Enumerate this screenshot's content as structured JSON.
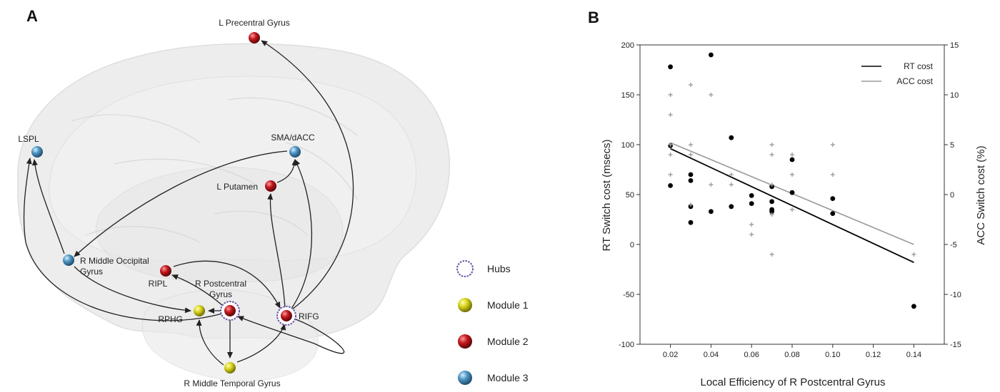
{
  "panel_a": {
    "letter": "A",
    "nodes": [
      {
        "id": "lprecentral",
        "label_lines": [
          "L Precentral Gyrus"
        ],
        "module": "module2",
        "hub": false
      },
      {
        "id": "lspl",
        "label_lines": [
          "LSPL"
        ],
        "module": "module3",
        "hub": false
      },
      {
        "id": "sma",
        "label_lines": [
          "SMA/dACC"
        ],
        "module": "module3",
        "hub": false
      },
      {
        "id": "lputamen",
        "label_lines": [
          "L Putamen"
        ],
        "module": "module2",
        "hub": false
      },
      {
        "id": "rmog",
        "label_lines": [
          "R Middle Occipital",
          "Gyrus"
        ],
        "module": "module3",
        "hub": false
      },
      {
        "id": "ripl",
        "label_lines": [
          "RIPL"
        ],
        "module": "module2",
        "hub": false
      },
      {
        "id": "rpostcentral",
        "label_lines": [
          "R Postcentral",
          "Gyrus"
        ],
        "module": "module2",
        "hub": true
      },
      {
        "id": "rifg",
        "label_lines": [
          "RIFG"
        ],
        "module": "module2",
        "hub": true
      },
      {
        "id": "rphg",
        "label_lines": [
          "RPHG"
        ],
        "module": "module1",
        "hub": false
      },
      {
        "id": "rmtg",
        "label_lines": [
          "R Middle Temporal Gyrus"
        ],
        "module": "module1",
        "hub": false
      }
    ],
    "edges": [
      {
        "from": "rifg",
        "to": "lprecentral"
      },
      {
        "from": "rifg",
        "to": "lputamen"
      },
      {
        "from": "rifg",
        "to": "sma"
      },
      {
        "from": "lputamen",
        "to": "sma"
      },
      {
        "from": "sma",
        "to": "rmog"
      },
      {
        "from": "rmog",
        "to": "lspl"
      },
      {
        "from": "rpostcentral",
        "to": "lspl"
      },
      {
        "from": "rmog",
        "to": "rphg"
      },
      {
        "from": "ripl",
        "to": "rifg"
      },
      {
        "from": "rpostcentral",
        "to": "ripl"
      },
      {
        "from": "rpostcentral",
        "to": "rmtg"
      },
      {
        "from": "rmtg",
        "to": "rphg"
      },
      {
        "from": "rmtg",
        "to": "rifg"
      },
      {
        "from": "rpostcentral",
        "to": "rphg"
      },
      {
        "from": "rifg",
        "to": "rpostcentral"
      }
    ],
    "legend": [
      {
        "key": "hubs",
        "label": "Hubs"
      },
      {
        "key": "module1",
        "label": "Module 1"
      },
      {
        "key": "module2",
        "label": "Module 2"
      },
      {
        "key": "module3",
        "label": "Module 3"
      }
    ],
    "colors": {
      "module1": "#d6d21c",
      "module2": "#c0181e",
      "module3": "#4d95c4",
      "hub_ring": "#6a55a8"
    }
  },
  "panel_b": {
    "letter": "B"
  },
  "chart_data": {
    "type": "scatter",
    "xlabel": "Local Efficiency of R Postcentral Gyrus",
    "ylabel": "RT Switch cost (msecs)",
    "y2label": "ACC Switch cost (%)",
    "xlim": [
      0.005,
      0.155
    ],
    "ylim": [
      -100,
      200
    ],
    "y2lim": [
      -15,
      15
    ],
    "xticks": [
      "0.02",
      "0.04",
      "0.06",
      "0.08",
      "0.10",
      "0.12",
      "0.14"
    ],
    "yticks": [
      "-100",
      "-50",
      "0",
      "50",
      "100",
      "150",
      "200"
    ],
    "y2ticks": [
      "-15",
      "-10",
      "-5",
      "0",
      "5",
      "10",
      "15"
    ],
    "grid": false,
    "legend_position": "top-right",
    "series": [
      {
        "name": "RT cost",
        "axis": "left",
        "marker": "dot",
        "color": "#000000",
        "points": [
          [
            0.02,
            178
          ],
          [
            0.02,
            99
          ],
          [
            0.02,
            59
          ],
          [
            0.03,
            70
          ],
          [
            0.03,
            64
          ],
          [
            0.03,
            38
          ],
          [
            0.03,
            22
          ],
          [
            0.04,
            190
          ],
          [
            0.04,
            33
          ],
          [
            0.05,
            107
          ],
          [
            0.05,
            38
          ],
          [
            0.06,
            49
          ],
          [
            0.06,
            41
          ],
          [
            0.07,
            58
          ],
          [
            0.07,
            43
          ],
          [
            0.07,
            35
          ],
          [
            0.07,
            33
          ],
          [
            0.08,
            85
          ],
          [
            0.08,
            52
          ],
          [
            0.1,
            46
          ],
          [
            0.1,
            31
          ],
          [
            0.14,
            -62
          ]
        ]
      },
      {
        "name": "ACC cost",
        "axis": "right",
        "marker": "plus",
        "color": "#a0a0a0",
        "points": [
          [
            0.02,
            10
          ],
          [
            0.02,
            8
          ],
          [
            0.02,
            5
          ],
          [
            0.02,
            4
          ],
          [
            0.02,
            2
          ],
          [
            0.03,
            11
          ],
          [
            0.03,
            5
          ],
          [
            0.03,
            4
          ],
          [
            0.03,
            -1
          ],
          [
            0.04,
            10
          ],
          [
            0.04,
            1
          ],
          [
            0.05,
            2
          ],
          [
            0.05,
            1
          ],
          [
            0.06,
            -3
          ],
          [
            0.06,
            -4
          ],
          [
            0.07,
            5
          ],
          [
            0.07,
            4
          ],
          [
            0.07,
            1
          ],
          [
            0.07,
            -2
          ],
          [
            0.07,
            -6
          ],
          [
            0.08,
            4
          ],
          [
            0.08,
            2
          ],
          [
            0.08,
            -1.5
          ],
          [
            0.1,
            5
          ],
          [
            0.1,
            2
          ],
          [
            0.14,
            -6
          ]
        ]
      }
    ],
    "fit_lines": [
      {
        "name": "RT cost",
        "axis": "left",
        "color": "#000000",
        "x": [
          0.02,
          0.14
        ],
        "y": [
          96,
          -18
        ]
      },
      {
        "name": "ACC cost",
        "axis": "right",
        "color": "#999999",
        "x": [
          0.02,
          0.14
        ],
        "y": [
          5.2,
          -5
        ]
      }
    ]
  }
}
